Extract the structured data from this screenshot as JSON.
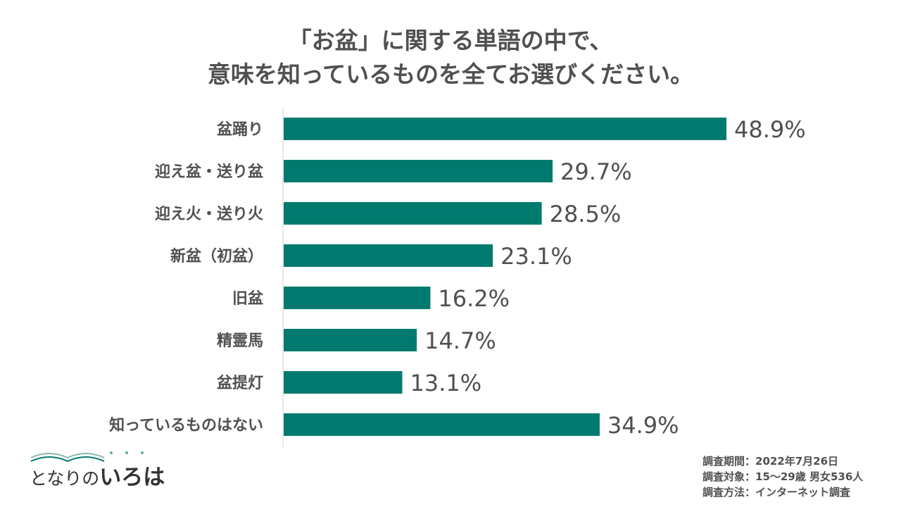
{
  "title_lines": [
    "「お盆」に関する単語の中で、",
    "意味を知っているものを全てお選びください。"
  ],
  "colors": {
    "bar": "#007a6e",
    "text": "#505050",
    "axis": "#d0d0d0"
  },
  "chart_data": {
    "type": "bar",
    "orientation": "horizontal",
    "categories": [
      "盆踊り",
      "迎え盆・送り盆",
      "迎え火・送り火",
      "新盆（初盆）",
      "旧盆",
      "精霊馬",
      "盆提灯",
      "知っているものはない"
    ],
    "values": [
      48.9,
      29.7,
      28.5,
      23.1,
      16.2,
      14.7,
      13.1,
      34.9
    ],
    "value_labels": [
      "48.9%",
      "29.7%",
      "28.5%",
      "23.1%",
      "16.2%",
      "14.7%",
      "13.1%",
      "34.9%"
    ],
    "xlim": [
      0,
      50
    ],
    "grid": false
  },
  "logo": {
    "prefix": "となりの",
    "main": "いろは"
  },
  "notes": [
    "調査期間：2022年7月26日",
    "調査対象：15〜29歳 男女536人",
    "調査方法：インターネット調査"
  ]
}
